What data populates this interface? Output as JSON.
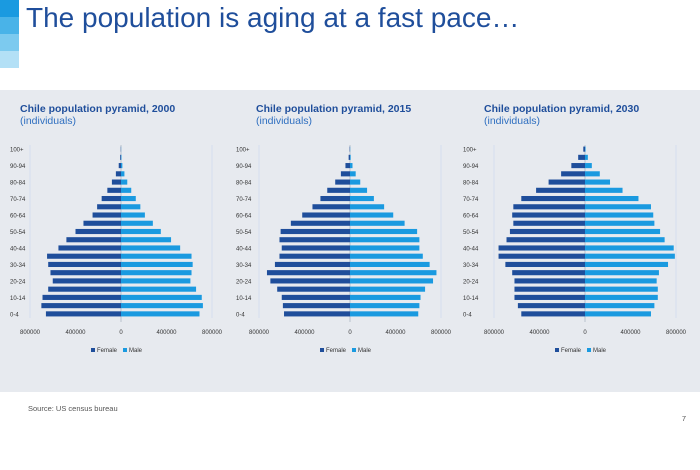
{
  "slide": {
    "title": "The population is aging at a fast pace…",
    "source": "Source: US census bureau",
    "page_number": "7"
  },
  "colors": {
    "female": "#1f4e9b",
    "male": "#1a9ae0",
    "title": "#1f4e9b",
    "subtitle": "#2f6fc0",
    "panel": "#e7eaef",
    "accent": [
      "#1a9ae0",
      "#49b3e8",
      "#7ccaef",
      "#b3e0f6"
    ]
  },
  "chart_data": [
    {
      "type": "bar",
      "orientation": "horizontal-pyramid",
      "title": "Chile population pyramid, 2000",
      "subtitle": "(individuals)",
      "categories": [
        "0-4",
        "5-9",
        "10-14",
        "15-19",
        "20-24",
        "25-29",
        "30-34",
        "35-39",
        "40-44",
        "45-49",
        "50-54",
        "55-59",
        "60-64",
        "65-69",
        "70-74",
        "75-79",
        "80-84",
        "85-89",
        "90-94",
        "95-99",
        "100+"
      ],
      "category_labels": [
        "0-4",
        "10-14",
        "20-24",
        "30-34",
        "40-44",
        "50-54",
        "60-64",
        "70-74",
        "80-84",
        "90-94",
        "100+"
      ],
      "xlim": [
        -800000,
        800000
      ],
      "x_ticks": [
        "800000",
        "400000",
        "0",
        "400000",
        "800000"
      ],
      "series": [
        {
          "name": "Female",
          "values": [
            660000,
            700000,
            690000,
            640000,
            600000,
            620000,
            640000,
            650000,
            550000,
            480000,
            400000,
            330000,
            250000,
            210000,
            170000,
            120000,
            80000,
            45000,
            20000,
            7000,
            2000
          ]
        },
        {
          "name": "Male",
          "values": [
            690000,
            720000,
            710000,
            660000,
            610000,
            620000,
            630000,
            620000,
            520000,
            440000,
            350000,
            280000,
            210000,
            170000,
            130000,
            90000,
            55000,
            30000,
            12000,
            4000,
            1000
          ]
        }
      ],
      "legend": [
        "Female",
        "Male"
      ],
      "legend_position": "bottom"
    },
    {
      "type": "bar",
      "orientation": "horizontal-pyramid",
      "title": "Chile population pyramid, 2015",
      "subtitle": "(individuals)",
      "categories": [
        "0-4",
        "5-9",
        "10-14",
        "15-19",
        "20-24",
        "25-29",
        "30-34",
        "35-39",
        "40-44",
        "45-49",
        "50-54",
        "55-59",
        "60-64",
        "65-69",
        "70-74",
        "75-79",
        "80-84",
        "85-89",
        "90-94",
        "95-99",
        "100+"
      ],
      "category_labels": [
        "0-4",
        "10-14",
        "20-24",
        "30-34",
        "40-44",
        "50-54",
        "60-64",
        "70-74",
        "80-84",
        "90-94",
        "100+"
      ],
      "xlim": [
        -800000,
        800000
      ],
      "x_ticks": [
        "800000",
        "400000",
        "0",
        "400000",
        "800000"
      ],
      "series": [
        {
          "name": "Female",
          "values": [
            580000,
            590000,
            600000,
            640000,
            700000,
            730000,
            660000,
            620000,
            600000,
            620000,
            610000,
            520000,
            420000,
            330000,
            260000,
            200000,
            130000,
            80000,
            40000,
            12000,
            3000
          ]
        },
        {
          "name": "Male",
          "values": [
            600000,
            610000,
            620000,
            660000,
            730000,
            760000,
            700000,
            640000,
            610000,
            610000,
            590000,
            480000,
            380000,
            300000,
            210000,
            150000,
            90000,
            50000,
            22000,
            6000,
            1500
          ]
        }
      ],
      "legend": [
        "Female",
        "Male"
      ],
      "legend_position": "bottom"
    },
    {
      "type": "bar",
      "orientation": "horizontal-pyramid",
      "title": "Chile population pyramid, 2030",
      "subtitle": "(individuals)",
      "categories": [
        "0-4",
        "5-9",
        "10-14",
        "15-19",
        "20-24",
        "25-29",
        "30-34",
        "35-39",
        "40-44",
        "45-49",
        "50-54",
        "55-59",
        "60-64",
        "65-69",
        "70-74",
        "75-79",
        "80-84",
        "85-89",
        "90-94",
        "95-99",
        "100+"
      ],
      "category_labels": [
        "0-4",
        "10-14",
        "20-24",
        "30-34",
        "40-44",
        "50-54",
        "60-64",
        "70-74",
        "80-84",
        "90-94",
        "100+"
      ],
      "xlim": [
        -800000,
        800000
      ],
      "x_ticks": [
        "800000",
        "400000",
        "0",
        "400000",
        "800000"
      ],
      "series": [
        {
          "name": "Female",
          "values": [
            560000,
            590000,
            620000,
            620000,
            620000,
            640000,
            700000,
            760000,
            760000,
            690000,
            660000,
            630000,
            640000,
            630000,
            560000,
            430000,
            320000,
            210000,
            120000,
            60000,
            15000
          ]
        },
        {
          "name": "Male",
          "values": [
            580000,
            610000,
            640000,
            640000,
            630000,
            650000,
            730000,
            790000,
            780000,
            700000,
            660000,
            610000,
            600000,
            580000,
            470000,
            330000,
            220000,
            130000,
            60000,
            25000,
            5000
          ]
        }
      ],
      "legend": [
        "Female",
        "Male"
      ],
      "legend_position": "bottom"
    }
  ]
}
